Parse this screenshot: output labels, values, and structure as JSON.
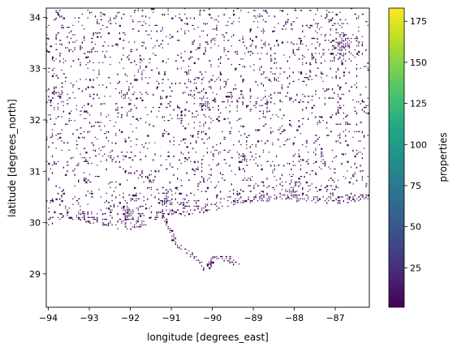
{
  "chart_data": {
    "type": "heatmap",
    "xlabel": "longitude [degrees_east]",
    "ylabel": "latitude [degrees_north]",
    "xlim": [
      -94.05,
      -86.17
    ],
    "ylim": [
      28.35,
      34.18
    ],
    "xticks": [
      -94,
      -93,
      -92,
      -91,
      -90,
      -89,
      -88,
      -87
    ],
    "xtick_labels": [
      "−94",
      "−93",
      "−92",
      "−91",
      "−90",
      "−89",
      "−88",
      "−87"
    ],
    "yticks": [
      29,
      30,
      31,
      32,
      33,
      34
    ],
    "ytick_labels": [
      "29",
      "30",
      "31",
      "32",
      "33",
      "34"
    ],
    "colormap": "viridis",
    "colorbar": {
      "label": "properties",
      "range": [
        1,
        183
      ],
      "ticks": [
        25,
        50,
        75,
        100,
        125,
        150,
        175
      ],
      "tick_labels": [
        "25",
        "50",
        "75",
        "100",
        "125",
        "150",
        "175"
      ]
    },
    "grid": false,
    "coastline": [
      [
        -94.05,
        29.92
      ],
      [
        -93.8,
        30.05
      ],
      [
        -93.5,
        30.05
      ],
      [
        -93.2,
        30.02
      ],
      [
        -92.8,
        29.97
      ],
      [
        -92.4,
        29.9
      ],
      [
        -92.0,
        29.85
      ],
      [
        -91.6,
        29.95
      ],
      [
        -91.3,
        30.12
      ],
      [
        -91.0,
        30.18
      ],
      [
        -90.7,
        30.14
      ],
      [
        -90.3,
        30.2
      ],
      [
        -89.9,
        30.25
      ],
      [
        -89.6,
        30.32
      ],
      [
        -89.3,
        30.37
      ],
      [
        -89.0,
        30.4
      ],
      [
        -88.6,
        30.43
      ],
      [
        -88.2,
        30.45
      ],
      [
        -87.9,
        30.42
      ],
      [
        -87.5,
        30.4
      ],
      [
        -87.1,
        30.38
      ],
      [
        -86.7,
        30.4
      ],
      [
        -86.4,
        30.42
      ],
      [
        -86.17,
        30.42
      ]
    ],
    "delta_tip": [
      [
        -91.2,
        30.1
      ],
      [
        -90.9,
        29.6
      ],
      [
        -90.55,
        29.4
      ],
      [
        -90.3,
        29.2
      ],
      [
        -90.15,
        29.1
      ],
      [
        -90.0,
        29.3
      ],
      [
        -89.6,
        29.3
      ],
      [
        -89.4,
        29.2
      ]
    ],
    "clusters": [
      {
        "lon": -91.15,
        "lat": 30.45,
        "radius": 0.2,
        "density": 1.0
      },
      {
        "lon": -92.05,
        "lat": 30.2,
        "radius": 0.22,
        "density": 1.0
      },
      {
        "lon": -90.1,
        "lat": 30.0,
        "radius": 0.18,
        "density": 0.9
      },
      {
        "lon": -88.1,
        "lat": 30.65,
        "radius": 0.15,
        "density": 0.8
      },
      {
        "lon": -89.4,
        "lat": 30.45,
        "radius": 0.12,
        "density": 0.7
      },
      {
        "lon": -90.2,
        "lat": 32.3,
        "radius": 0.2,
        "density": 0.9
      },
      {
        "lon": -93.75,
        "lat": 32.5,
        "radius": 0.16,
        "density": 0.8
      },
      {
        "lon": -92.1,
        "lat": 32.5,
        "radius": 0.12,
        "density": 0.7
      },
      {
        "lon": -86.8,
        "lat": 33.5,
        "radius": 0.22,
        "density": 0.95
      },
      {
        "lon": -87.55,
        "lat": 33.2,
        "radius": 0.12,
        "density": 0.8
      },
      {
        "lon": -86.3,
        "lat": 32.35,
        "radius": 0.1,
        "density": 0.8
      },
      {
        "lon": -89.3,
        "lat": 31.3,
        "radius": 0.12,
        "density": 0.75
      },
      {
        "lon": -93.2,
        "lat": 30.2,
        "radius": 0.12,
        "density": 0.7
      },
      {
        "lon": -91.0,
        "lat": 30.25,
        "radius": 0.1,
        "density": 0.6
      },
      {
        "lon": -89.6,
        "lat": 32.45,
        "radius": 0.09,
        "density": 0.6
      },
      {
        "lon": -88.7,
        "lat": 32.35,
        "radius": 0.08,
        "density": 0.6
      },
      {
        "lon": -92.5,
        "lat": 31.3,
        "radius": 0.08,
        "density": 0.6
      },
      {
        "lon": -88.85,
        "lat": 30.4,
        "radius": 0.1,
        "density": 0.85
      },
      {
        "lon": -87.2,
        "lat": 30.45,
        "radius": 0.1,
        "density": 0.7
      },
      {
        "lon": -91.4,
        "lat": 31.55,
        "radius": 0.07,
        "density": 0.5
      },
      {
        "lon": -90.3,
        "lat": 31.2,
        "radius": 0.08,
        "density": 0.5
      },
      {
        "lon": -93.0,
        "lat": 33.3,
        "radius": 0.07,
        "density": 0.5
      },
      {
        "lon": -94.0,
        "lat": 33.4,
        "radius": 0.1,
        "density": 0.6
      }
    ],
    "background_density": 0.1,
    "value_range_typical": [
      1,
      25
    ]
  }
}
